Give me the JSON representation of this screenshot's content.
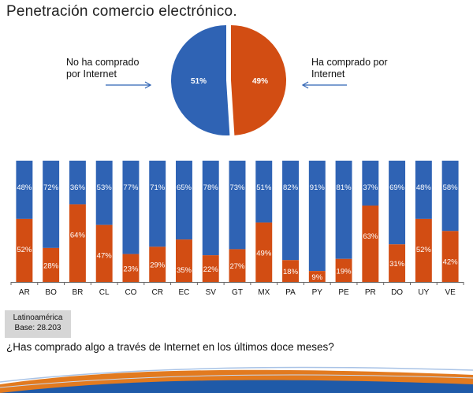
{
  "title": "Penetración comercio electrónico.",
  "pie": {
    "slices": [
      {
        "label": "No ha comprado por Internet",
        "label_lines": [
          "No ha comprado",
          "por Internet"
        ],
        "value": 51,
        "value_label": "51%",
        "color": "#2f63b4"
      },
      {
        "label": "Ha comprado por Internet",
        "label_lines": [
          "Ha comprado por",
          "Internet"
        ],
        "value": 49,
        "value_label": "49%",
        "color": "#d24d13"
      }
    ]
  },
  "chart_data": {
    "type": "bar",
    "stacked": true,
    "categories": [
      "AR",
      "BO",
      "BR",
      "CL",
      "CO",
      "CR",
      "EC",
      "SV",
      "GT",
      "MX",
      "PA",
      "PY",
      "PE",
      "PR",
      "DO",
      "UY",
      "VE"
    ],
    "series": [
      {
        "name": "Ha comprado por Internet",
        "color": "#d24d13",
        "values": [
          52,
          28,
          64,
          47,
          23,
          29,
          35,
          22,
          27,
          49,
          18,
          9,
          19,
          63,
          31,
          52,
          42
        ]
      },
      {
        "name": "No ha comprado por Internet",
        "color": "#2f63b4",
        "values": [
          48,
          72,
          36,
          53,
          77,
          71,
          65,
          78,
          73,
          51,
          82,
          91,
          81,
          37,
          69,
          48,
          58
        ]
      }
    ],
    "ylim": [
      0,
      100
    ],
    "value_suffix": "%"
  },
  "source": {
    "line1": "Latinoamérica",
    "line2": "Base: 28.203"
  },
  "question": "¿Has comprado algo a través de Internet en los últimos doce meses?"
}
